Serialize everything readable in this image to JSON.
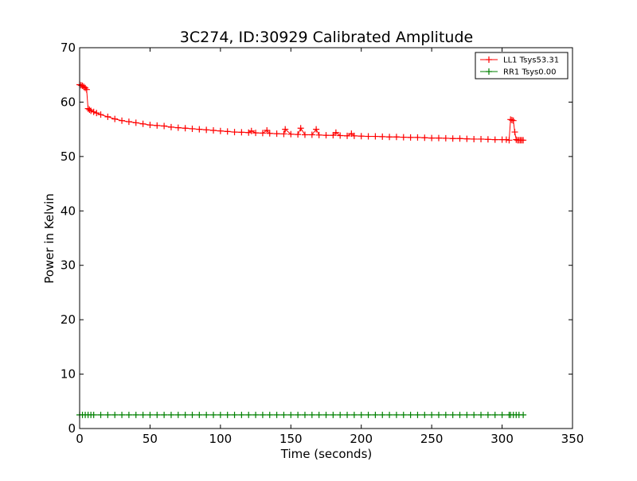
{
  "chart_data": {
    "type": "line",
    "title": "3C274, ID:30929 Calibrated Amplitude",
    "xlabel": "Time (seconds)",
    "ylabel": "Power in Kelvin",
    "xlim": [
      0,
      350
    ],
    "ylim": [
      0,
      70
    ],
    "xticks": [
      0,
      50,
      100,
      150,
      200,
      250,
      300,
      350
    ],
    "yticks": [
      0,
      10,
      20,
      30,
      40,
      50,
      60,
      70
    ],
    "grid": false,
    "legend_position": "top-right",
    "series": [
      {
        "name": "LL1 Tsys53.31",
        "color": "#ff0000",
        "marker": "plus",
        "x": [
          0,
          1,
          2,
          3,
          4,
          5,
          6,
          7,
          8,
          10,
          12,
          15,
          20,
          25,
          30,
          35,
          40,
          45,
          50,
          55,
          60,
          65,
          70,
          75,
          80,
          85,
          90,
          95,
          100,
          105,
          110,
          115,
          120,
          122,
          125,
          130,
          133,
          135,
          140,
          145,
          146,
          150,
          155,
          157,
          160,
          165,
          168,
          170,
          175,
          180,
          182,
          185,
          190,
          193,
          195,
          200,
          205,
          210,
          215,
          220,
          225,
          230,
          235,
          240,
          245,
          250,
          255,
          260,
          265,
          270,
          275,
          280,
          285,
          290,
          295,
          300,
          303,
          305,
          306,
          307,
          308,
          309,
          310,
          311,
          312,
          313,
          314,
          315
        ],
        "values": [
          63.2,
          63.1,
          63.0,
          62.8,
          62.6,
          62.3,
          58.8,
          58.6,
          58.4,
          58.2,
          58.0,
          57.7,
          57.3,
          56.9,
          56.6,
          56.4,
          56.2,
          56.0,
          55.8,
          55.7,
          55.6,
          55.4,
          55.3,
          55.2,
          55.1,
          55.0,
          54.9,
          54.8,
          54.7,
          54.6,
          54.5,
          54.45,
          54.4,
          54.7,
          54.35,
          54.3,
          54.8,
          54.25,
          54.2,
          54.15,
          55.0,
          54.1,
          54.05,
          55.2,
          54.0,
          54.0,
          55.0,
          53.95,
          53.9,
          53.9,
          54.4,
          53.85,
          53.8,
          54.2,
          53.8,
          53.75,
          53.7,
          53.7,
          53.65,
          53.6,
          53.6,
          53.55,
          53.5,
          53.5,
          53.45,
          53.4,
          53.4,
          53.35,
          53.3,
          53.3,
          53.25,
          53.2,
          53.2,
          53.15,
          53.1,
          53.1,
          53.1,
          53.0,
          56.8,
          56.7,
          56.6,
          54.5,
          53.1,
          53.0,
          53.0,
          53.0,
          53.0,
          53.0
        ]
      },
      {
        "name": "RR1 Tsys0.00",
        "color": "#008000",
        "marker": "plus",
        "x": [
          0,
          2,
          4,
          6,
          8,
          10,
          15,
          20,
          25,
          30,
          35,
          40,
          45,
          50,
          55,
          60,
          65,
          70,
          75,
          80,
          85,
          90,
          95,
          100,
          105,
          110,
          115,
          120,
          125,
          130,
          135,
          140,
          145,
          150,
          155,
          160,
          165,
          170,
          175,
          180,
          185,
          190,
          195,
          200,
          205,
          210,
          215,
          220,
          225,
          230,
          235,
          240,
          245,
          250,
          255,
          260,
          265,
          270,
          275,
          280,
          285,
          290,
          295,
          300,
          305,
          306,
          308,
          310,
          312,
          315
        ],
        "values": [
          2.5,
          2.5,
          2.5,
          2.5,
          2.5,
          2.5,
          2.5,
          2.5,
          2.5,
          2.5,
          2.5,
          2.5,
          2.5,
          2.5,
          2.5,
          2.5,
          2.5,
          2.5,
          2.5,
          2.5,
          2.5,
          2.5,
          2.5,
          2.5,
          2.5,
          2.5,
          2.5,
          2.5,
          2.5,
          2.5,
          2.5,
          2.5,
          2.5,
          2.5,
          2.5,
          2.5,
          2.5,
          2.5,
          2.5,
          2.5,
          2.5,
          2.5,
          2.5,
          2.5,
          2.5,
          2.5,
          2.5,
          2.5,
          2.5,
          2.5,
          2.5,
          2.5,
          2.5,
          2.5,
          2.5,
          2.5,
          2.5,
          2.5,
          2.5,
          2.5,
          2.5,
          2.5,
          2.5,
          2.5,
          2.5,
          2.5,
          2.5,
          2.5,
          2.5,
          2.5
        ]
      }
    ]
  }
}
